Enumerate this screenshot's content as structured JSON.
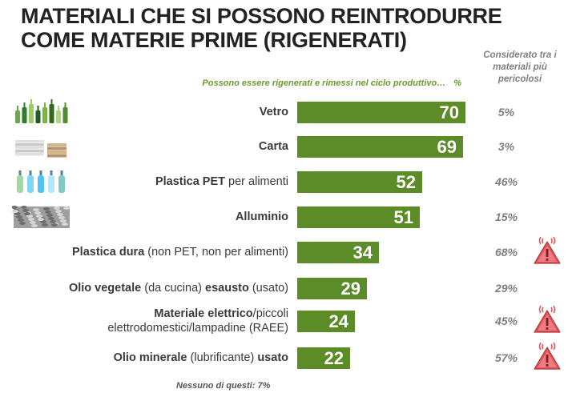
{
  "title_lines": [
    "MATERIALI CHE SI POSSONO REINTRODURRE",
    "COME MATERIE PRIME (RIGENERATI)"
  ],
  "side_header": [
    "Considerato tra i",
    "materiali più",
    "pericolosi"
  ],
  "subheader": {
    "text": "Possono essere rigenerati e rimessi nel ciclo produttivo…",
    "unit": "%"
  },
  "footer": "Nessuno di questi: 7%",
  "colors": {
    "bar": "#5b8c27",
    "accent_text": "#6a9a2e",
    "warning": "#e8525a"
  },
  "chart_data": {
    "type": "bar",
    "orientation": "horizontal",
    "xlim": [
      0,
      100
    ],
    "categories": [
      "Vetro",
      "Carta",
      "Plastica PET per alimenti",
      "Alluminio",
      "Plastica dura (non PET, non per alimenti)",
      "Olio vegetale (da cucina) esausto (usato)",
      "Materiale elettrico/piccoli elettrodomestici/lampadine (RAEE)",
      "Olio minerale (lubrificante) usato"
    ],
    "series": [
      {
        "values": [
          70,
          69,
          52,
          51,
          34,
          29,
          24,
          22
        ]
      }
    ],
    "secondary_values": [
      "5%",
      "3%",
      "46%",
      "15%",
      "68%",
      "29%",
      "45%",
      "57%"
    ],
    "warning_flags": [
      false,
      false,
      false,
      false,
      true,
      false,
      true,
      true
    ]
  },
  "rows": [
    {
      "label_parts": [
        {
          "b": true,
          "t": "Vetro"
        }
      ],
      "icon": "glass-bottles-icon"
    },
    {
      "label_parts": [
        {
          "b": true,
          "t": "Carta"
        }
      ],
      "icon": "newspaper-stack-icon"
    },
    {
      "label_parts": [
        {
          "b": true,
          "t": "Plastica PET"
        },
        {
          "b": false,
          "t": " per alimenti"
        }
      ],
      "icon": "plastic-bottles-icon"
    },
    {
      "label_parts": [
        {
          "b": true,
          "t": "Alluminio"
        }
      ],
      "icon": "aluminium-scrap-icon"
    },
    {
      "label_parts": [
        {
          "b": true,
          "t": "Plastica dura"
        },
        {
          "b": false,
          "t": " (non PET, non per alimenti)"
        }
      ]
    },
    {
      "label_parts": [
        {
          "b": true,
          "t": "Olio vegetale"
        },
        {
          "b": false,
          "t": " (da cucina) "
        },
        {
          "b": true,
          "t": "esausto"
        },
        {
          "b": false,
          "t": " (usato)"
        }
      ]
    },
    {
      "label_lines": [
        [
          {
            "b": true,
            "t": "Materiale elettrico"
          },
          {
            "b": false,
            "t": "/piccoli"
          }
        ],
        [
          {
            "b": false,
            "t": "elettrodomestici/lampadine (RAEE)"
          }
        ]
      ]
    },
    {
      "label_parts": [
        {
          "b": true,
          "t": "Olio minerale"
        },
        {
          "b": false,
          "t": " (lubrificante) "
        },
        {
          "b": true,
          "t": "usato"
        }
      ]
    }
  ]
}
